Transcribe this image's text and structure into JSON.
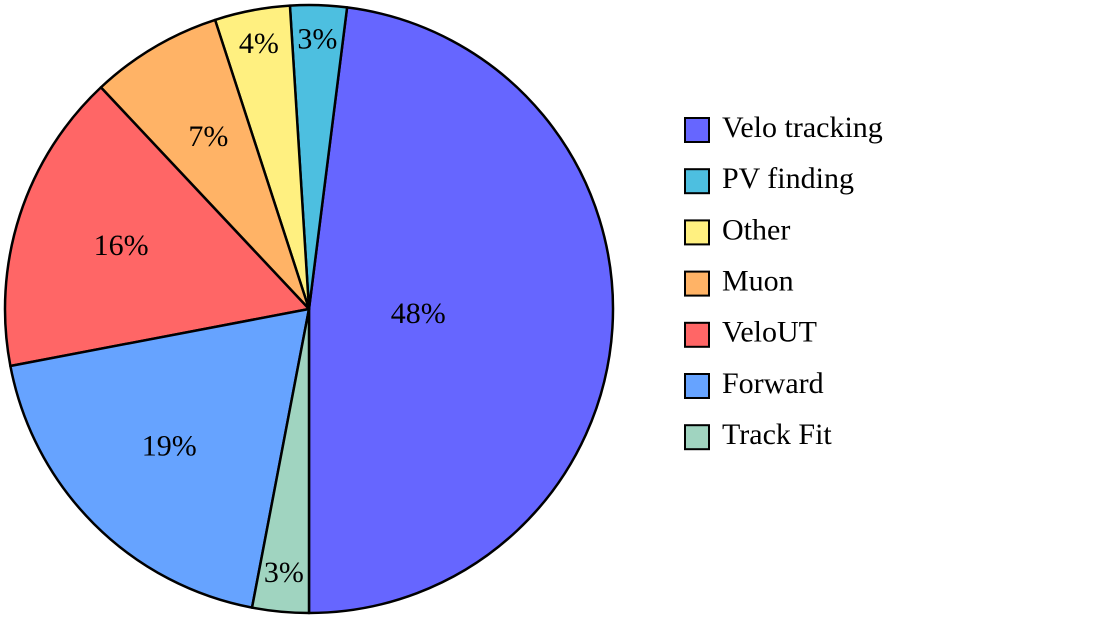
{
  "chart_data": {
    "type": "pie",
    "categories": [
      "Velo tracking",
      "PV finding",
      "Other",
      "Muon",
      "VeloUT",
      "Forward",
      "Track Fit"
    ],
    "values": [
      48,
      3,
      4,
      7,
      16,
      19,
      3
    ],
    "value_labels": [
      "48%",
      "3%",
      "4%",
      "7%",
      "16%",
      "19%",
      "3%"
    ],
    "colors": [
      "#6666ff",
      "#4dbfe0",
      "#fff080",
      "#ffb366",
      "#ff6666",
      "#66a3ff",
      "#a0d4c0"
    ],
    "legend": "right"
  }
}
